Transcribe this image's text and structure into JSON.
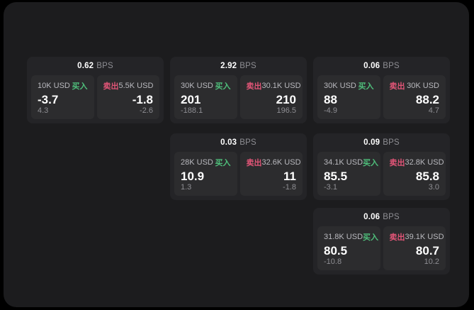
{
  "theme": {
    "page_bg": "#000000",
    "panel_bg": "#1c1c1e",
    "card_bg": "#242427",
    "tile_bg": "#2c2c2e",
    "text_primary": "#ffffff",
    "text_muted": "#8e8e93",
    "text_amount": "#b9b9be",
    "buy_color": "#4fbf7b",
    "sell_color": "#e25577"
  },
  "labels": {
    "bps_unit": "BPS",
    "buy": "买入",
    "sell": "卖出"
  },
  "cards": [
    {
      "bps": "0.62",
      "col": 1,
      "row": 1,
      "buy": {
        "amount": "10K USD",
        "value": "-3.7",
        "delta": "4.3"
      },
      "sell": {
        "amount": "5.5K USD",
        "value": "-1.8",
        "delta": "-2.6"
      }
    },
    {
      "bps": "2.92",
      "col": 2,
      "row": 1,
      "buy": {
        "amount": "30K USD",
        "value": "201",
        "delta": "-188.1"
      },
      "sell": {
        "amount": "30.1K USD",
        "value": "210",
        "delta": "196.5"
      }
    },
    {
      "bps": "0.06",
      "col": 3,
      "row": 1,
      "buy": {
        "amount": "30K USD",
        "value": "88",
        "delta": "-4.9"
      },
      "sell": {
        "amount": "30K USD",
        "value": "88.2",
        "delta": "4.7"
      }
    },
    {
      "bps": "0.03",
      "col": 2,
      "row": 2,
      "buy": {
        "amount": "28K USD",
        "value": "10.9",
        "delta": "1.3"
      },
      "sell": {
        "amount": "32.6K USD",
        "value": "11",
        "delta": "-1.8"
      }
    },
    {
      "bps": "0.09",
      "col": 3,
      "row": 2,
      "buy": {
        "amount": "34.1K USD",
        "value": "85.5",
        "delta": "-3.1"
      },
      "sell": {
        "amount": "32.8K USD",
        "value": "85.8",
        "delta": "3.0"
      }
    },
    {
      "bps": "0.06",
      "col": 3,
      "row": 3,
      "buy": {
        "amount": "31.8K USD",
        "value": "80.5",
        "delta": "-10.8"
      },
      "sell": {
        "amount": "39.1K USD",
        "value": "80.7",
        "delta": "10.2"
      }
    }
  ]
}
